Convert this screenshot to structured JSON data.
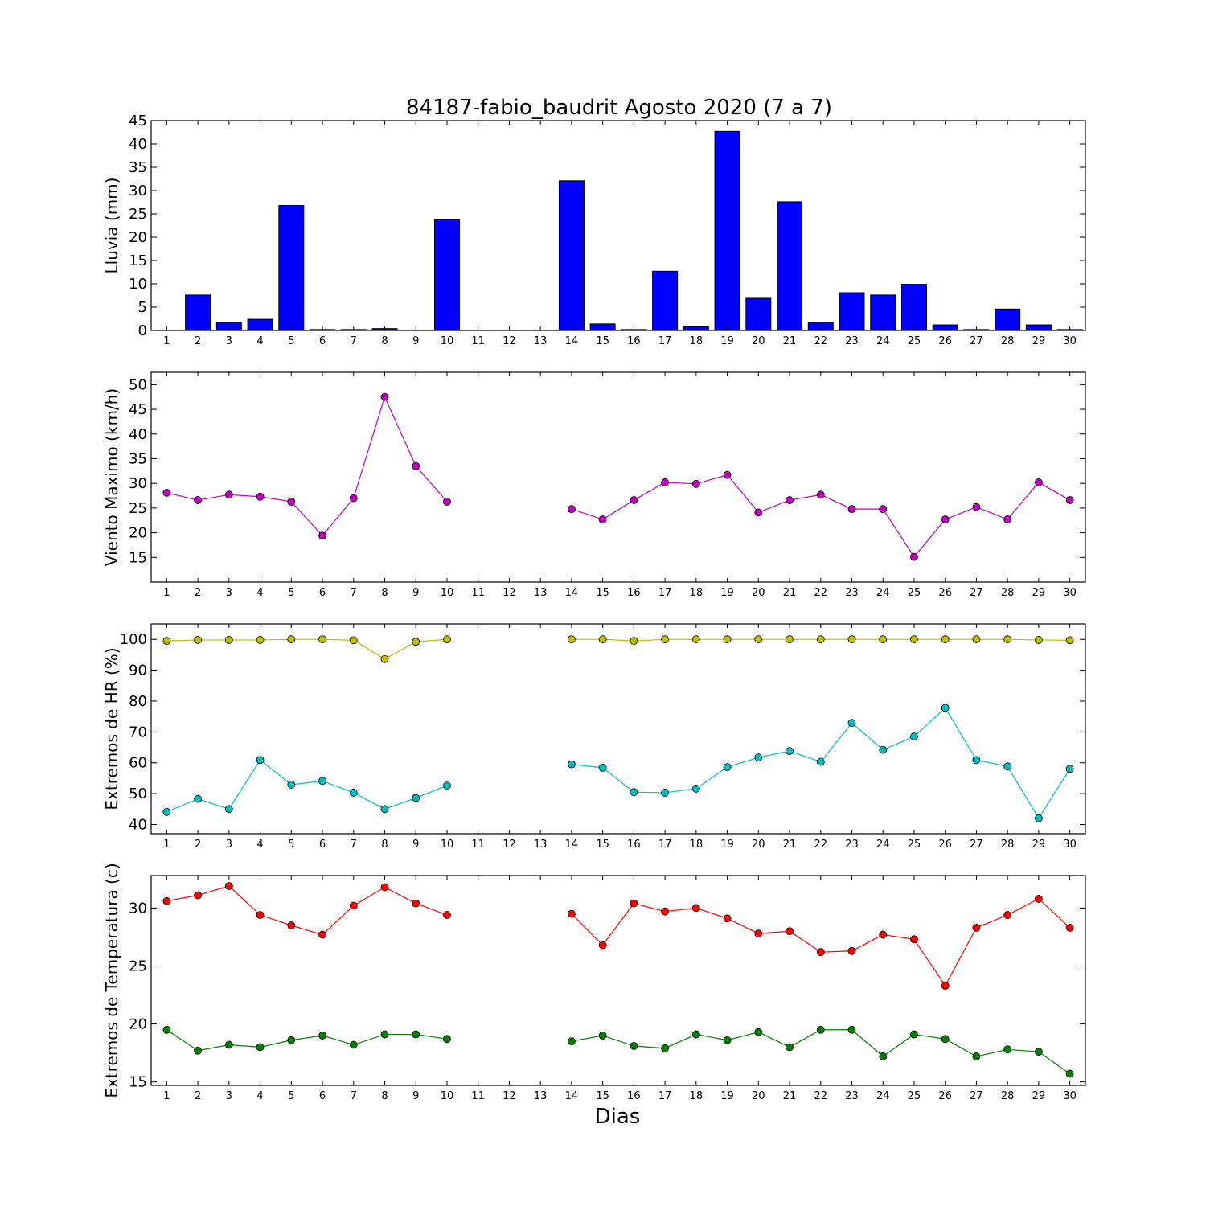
{
  "title": "84187-fabio_baudrit Agosto 2020  (7 a 7)",
  "xlabel": "Dias",
  "chart_data": [
    {
      "type": "bar",
      "ylabel": "Lluvia (mm)",
      "ylim": [
        0,
        45
      ],
      "yticks": [
        0,
        5,
        10,
        15,
        20,
        25,
        30,
        35,
        40,
        45
      ],
      "x": [
        1,
        2,
        3,
        4,
        5,
        6,
        7,
        8,
        9,
        10,
        11,
        12,
        13,
        14,
        15,
        16,
        17,
        18,
        19,
        20,
        21,
        22,
        23,
        24,
        25,
        26,
        27,
        28,
        29,
        30
      ],
      "xlim": [
        0.5,
        30.5
      ],
      "color": "#0000ff",
      "series": [
        {
          "values": [
            0,
            7.6,
            1.8,
            2.4,
            26.8,
            0.2,
            0.2,
            0.4,
            0,
            23.8,
            0,
            0,
            0,
            32.1,
            1.4,
            0.2,
            12.7,
            0.8,
            42.7,
            6.9,
            27.6,
            1.8,
            8.1,
            7.6,
            9.9,
            1.2,
            0.2,
            4.6,
            1.2,
            0.2
          ]
        }
      ]
    },
    {
      "type": "line",
      "ylabel": "Viento Maximo (km/h)",
      "ylim": [
        10,
        52.5
      ],
      "yticks": [
        15,
        20,
        25,
        30,
        35,
        40,
        45,
        50
      ],
      "x": [
        1,
        2,
        3,
        4,
        5,
        6,
        7,
        8,
        9,
        10,
        11,
        12,
        13,
        14,
        15,
        16,
        17,
        18,
        19,
        20,
        21,
        22,
        23,
        24,
        25,
        26,
        27,
        28,
        29,
        30
      ],
      "xlim": [
        0.5,
        30.5
      ],
      "series": [
        {
          "color": "#bf00bf",
          "values": [
            28.1,
            26.6,
            27.7,
            27.3,
            26.3,
            19.4,
            27.0,
            47.5,
            33.5,
            26.3,
            null,
            null,
            null,
            24.8,
            22.7,
            26.6,
            30.2,
            29.9,
            31.7,
            24.1,
            26.6,
            27.7,
            24.8,
            24.8,
            15.1,
            22.7,
            25.2,
            22.7,
            30.2,
            26.6
          ]
        }
      ]
    },
    {
      "type": "line",
      "ylabel": "Extremos de HR (%)",
      "ylim": [
        37,
        105
      ],
      "yticks": [
        40,
        50,
        60,
        70,
        80,
        90,
        100
      ],
      "x": [
        1,
        2,
        3,
        4,
        5,
        6,
        7,
        8,
        9,
        10,
        11,
        12,
        13,
        14,
        15,
        16,
        17,
        18,
        19,
        20,
        21,
        22,
        23,
        24,
        25,
        26,
        27,
        28,
        29,
        30
      ],
      "xlim": [
        0.5,
        30.5
      ],
      "series": [
        {
          "color": "#bfbf00",
          "values": [
            99.5,
            99.8,
            99.8,
            99.8,
            100,
            100,
            99.7,
            93.6,
            99.2,
            100,
            null,
            null,
            null,
            100,
            100,
            99.5,
            100,
            100,
            100,
            100,
            100,
            100,
            100,
            100,
            100,
            100,
            100,
            100,
            99.8,
            99.7
          ]
        },
        {
          "color": "#00bfbf",
          "values": [
            44.1,
            48.3,
            45.0,
            60.9,
            52.9,
            54.1,
            50.3,
            45.0,
            48.6,
            52.6,
            null,
            null,
            null,
            59.5,
            58.4,
            50.5,
            50.3,
            51.6,
            58.6,
            61.7,
            63.8,
            60.3,
            72.9,
            64.2,
            68.5,
            77.8,
            60.9,
            58.8,
            42.0,
            58.0
          ]
        }
      ]
    },
    {
      "type": "line",
      "ylabel": "Extremos de Temperatura (c)",
      "ylim": [
        14.7,
        32.8
      ],
      "yticks": [
        15,
        20,
        25,
        30
      ],
      "x": [
        1,
        2,
        3,
        4,
        5,
        6,
        7,
        8,
        9,
        10,
        11,
        12,
        13,
        14,
        15,
        16,
        17,
        18,
        19,
        20,
        21,
        22,
        23,
        24,
        25,
        26,
        27,
        28,
        29,
        30
      ],
      "xlim": [
        0.5,
        30.5
      ],
      "series": [
        {
          "color": "#ff0000",
          "values": [
            30.6,
            31.1,
            31.9,
            29.4,
            28.5,
            27.7,
            30.2,
            31.8,
            30.4,
            29.4,
            null,
            null,
            null,
            29.5,
            26.8,
            30.4,
            29.7,
            30.0,
            29.1,
            27.8,
            28.0,
            26.2,
            26.3,
            27.7,
            27.3,
            23.3,
            28.3,
            29.4,
            30.8,
            28.3
          ]
        },
        {
          "color": "#008000",
          "values": [
            19.5,
            17.7,
            18.2,
            18.0,
            18.6,
            19.0,
            18.2,
            19.1,
            19.1,
            18.7,
            null,
            null,
            null,
            18.5,
            19.0,
            18.1,
            17.9,
            19.1,
            18.6,
            19.3,
            18.0,
            19.5,
            19.5,
            17.2,
            19.1,
            18.7,
            17.2,
            17.8,
            17.6,
            15.7
          ]
        }
      ]
    }
  ]
}
